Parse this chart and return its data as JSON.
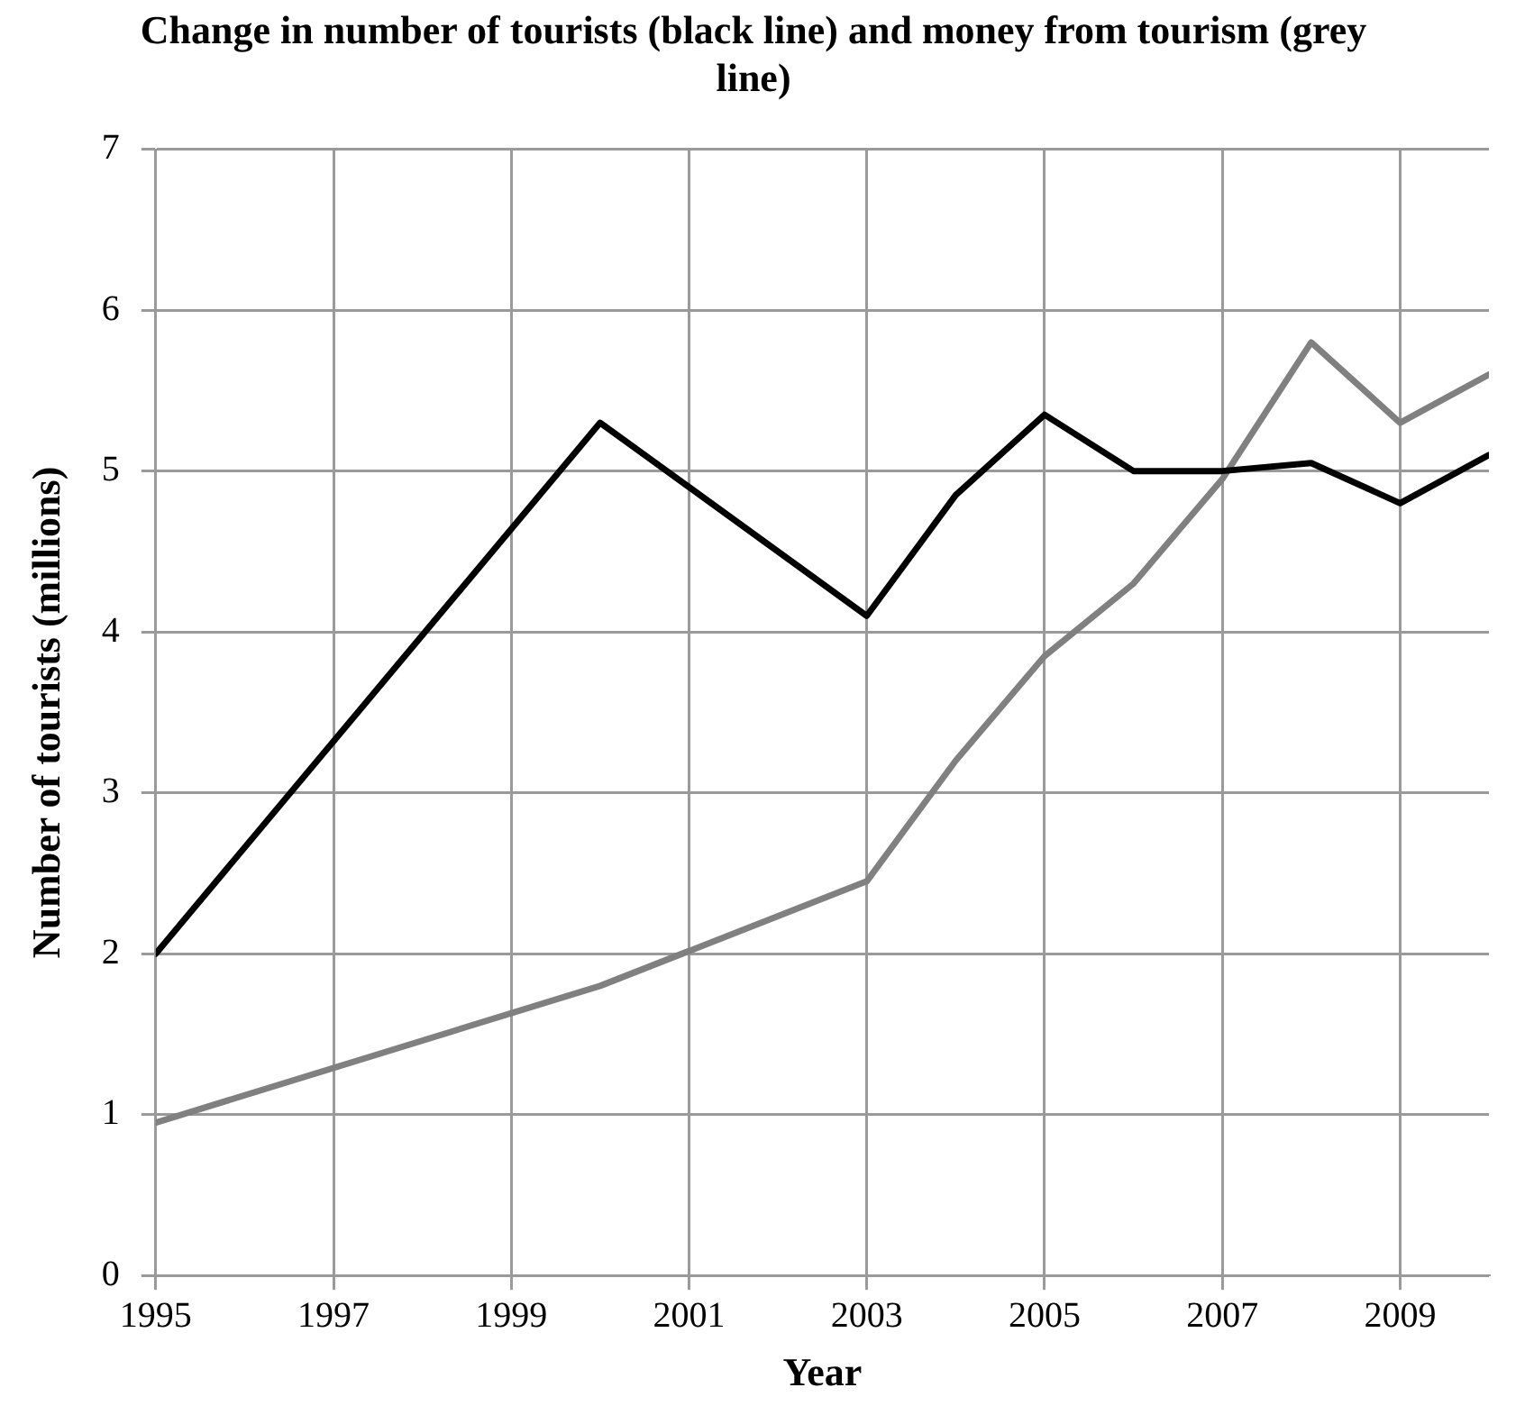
{
  "chart_data": {
    "type": "line",
    "title": "Change in number of tourists (black line) and money from tourism (grey line)",
    "xlabel": "Year",
    "ylabel": "Number of tourists (millions)",
    "series": [
      {
        "color": "#000000",
        "x": [
          1995,
          2000,
          2003,
          2004,
          2005,
          2006,
          2007,
          2008,
          2009,
          2010
        ],
        "values": [
          2.0,
          5.3,
          4.1,
          4.85,
          5.35,
          5.0,
          5.0,
          5.05,
          4.8,
          5.1
        ]
      },
      {
        "color": "#808080",
        "x": [
          1995,
          2000,
          2003,
          2004,
          2005,
          2006,
          2007,
          2008,
          2009,
          2010
        ],
        "values": [
          0.95,
          1.8,
          2.45,
          3.2,
          3.85,
          4.3,
          4.95,
          5.8,
          5.3,
          5.6
        ]
      }
    ],
    "xlim": [
      1995,
      2010
    ],
    "xticks": [
      1995,
      1997,
      1999,
      2001,
      2003,
      2005,
      2007,
      2009
    ],
    "ylim": [
      0,
      7
    ],
    "yticks": [
      0,
      1,
      2,
      3,
      4,
      5,
      6,
      7
    ],
    "grid": true,
    "marker": "none",
    "line_style": "solid"
  }
}
